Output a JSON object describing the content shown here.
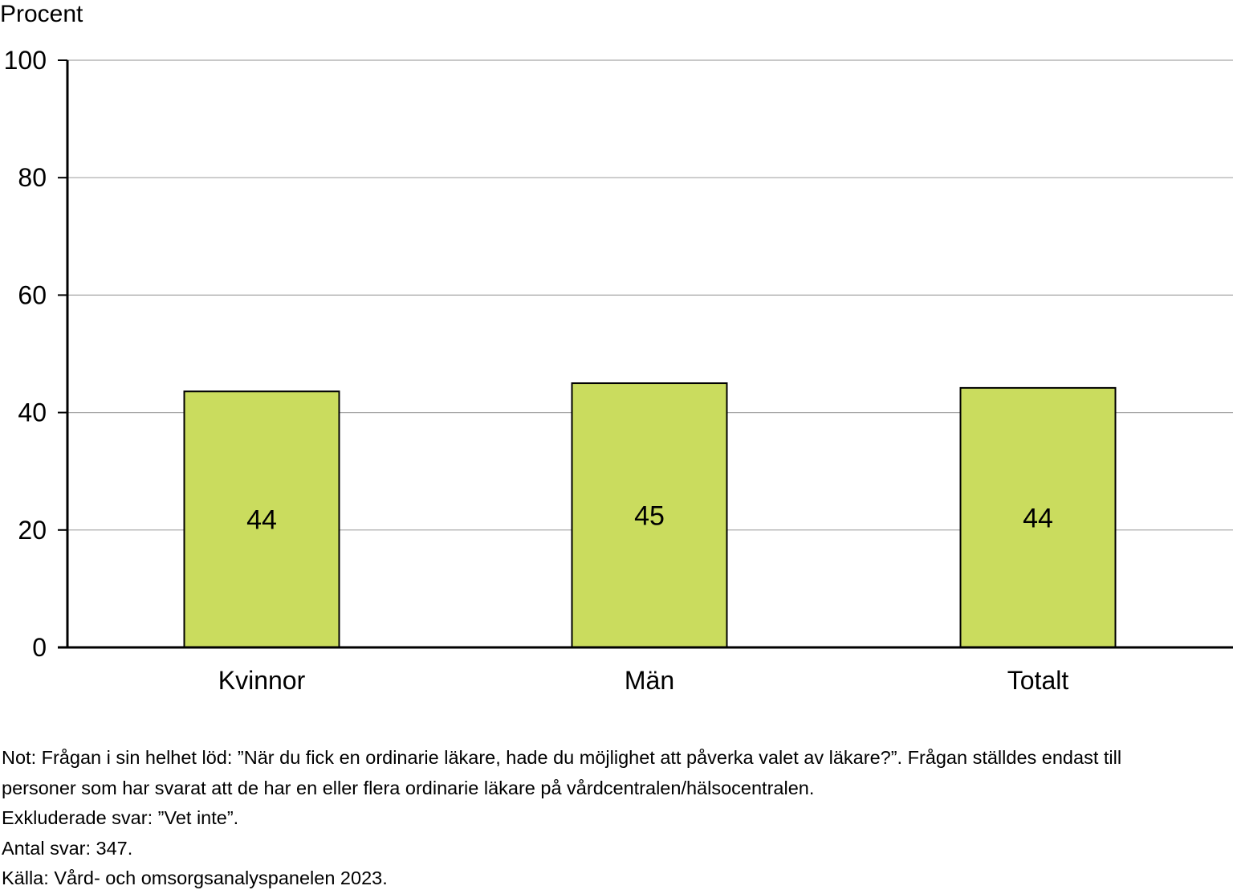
{
  "chart_data": {
    "type": "bar",
    "ylabel": "Procent",
    "categories": [
      "Kvinnor",
      "Män",
      "Totalt"
    ],
    "values": [
      43.6,
      45.0,
      44.2
    ],
    "data_labels": [
      "44",
      "45",
      "44"
    ],
    "ylim": [
      0,
      100
    ],
    "yticks": [
      0,
      20,
      40,
      60,
      80,
      100
    ],
    "grid": true,
    "bar_color": "#cadc5e",
    "bar_border_color": "#000000",
    "grid_color": "#a6a6a6"
  },
  "notes": {
    "line1": "Not: Frågan i sin helhet löd: ”När du fick en ordinarie läkare, hade du möjlighet att påverka valet av läkare?”. Frågan ställdes endast till",
    "line2": "personer som har svarat att de har en eller flera ordinarie läkare på vårdcentralen/hälsocentralen.",
    "line3": "Exkluderade svar: ”Vet inte”.",
    "line4": "Antal svar: 347.",
    "line5": "Källa: Vård- och omsorgsanalyspanelen 2023."
  }
}
